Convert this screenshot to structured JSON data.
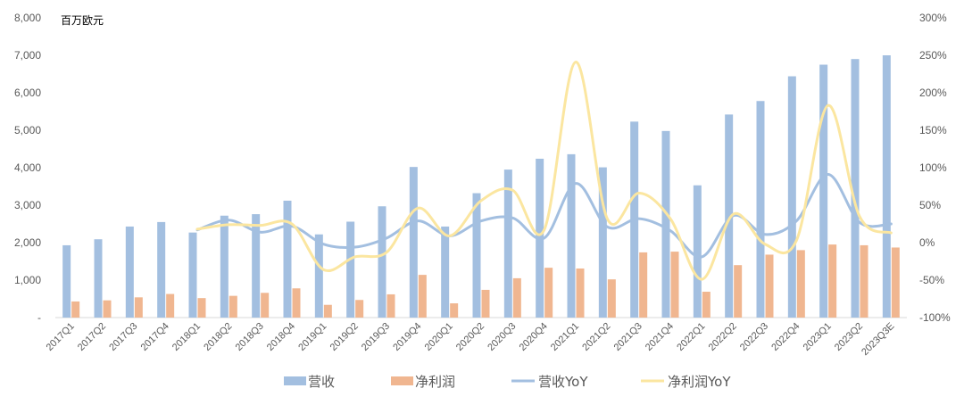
{
  "chart_data": {
    "type": "bar",
    "unit_label": "百万欧元",
    "categories": [
      "2017Q1",
      "2017Q2",
      "2017Q3",
      "2017Q4",
      "2018Q1",
      "2018Q2",
      "2018Q3",
      "2018Q4",
      "2019Q1",
      "2019Q2",
      "2019Q3",
      "2019Q4",
      "2020Q1",
      "2020Q2",
      "2020Q3",
      "2020Q4",
      "2021Q1",
      "2021Q2",
      "2021Q3",
      "2021Q4",
      "2022Q1",
      "2022Q2",
      "2022Q3",
      "2022Q4",
      "2023Q1",
      "2023Q2",
      "2023Q3E"
    ],
    "series": [
      {
        "name": "营收",
        "kind": "bar",
        "axis": "left",
        "color": "#a3bfe0",
        "values": [
          1930,
          2090,
          2430,
          2550,
          2270,
          2720,
          2760,
          3120,
          2220,
          2560,
          2970,
          4020,
          2430,
          3320,
          3950,
          4240,
          4360,
          4010,
          5230,
          4980,
          3530,
          5420,
          5780,
          6440,
          6750,
          6900,
          7000
        ]
      },
      {
        "name": "净利润",
        "kind": "bar",
        "axis": "left",
        "color": "#f0b690",
        "values": [
          430,
          460,
          540,
          630,
          520,
          580,
          660,
          780,
          340,
          470,
          620,
          1140,
          380,
          740,
          1050,
          1330,
          1310,
          1020,
          1740,
          1760,
          690,
          1400,
          1680,
          1800,
          1950,
          1930,
          1870
        ]
      },
      {
        "name": "营收YoY",
        "kind": "line",
        "axis": "right",
        "color": "#a3bfe0",
        "values": [
          null,
          null,
          null,
          null,
          17,
          30,
          14,
          22,
          -2,
          -6,
          6,
          29,
          9,
          29,
          33,
          6,
          79,
          21,
          32,
          16,
          -19,
          36,
          11,
          29,
          91,
          27,
          25
        ]
      },
      {
        "name": "净利润YoY",
        "kind": "line",
        "axis": "right",
        "color": "#fbe6a0",
        "values": [
          null,
          null,
          null,
          null,
          18,
          24,
          23,
          25,
          -36,
          -19,
          -13,
          46,
          9,
          56,
          70,
          17,
          241,
          32,
          66,
          32,
          -49,
          38,
          -2,
          3,
          183,
          35,
          13
        ]
      }
    ],
    "left_axis": {
      "min": 0,
      "max": 8000,
      "ticks": [
        "-",
        "1,000",
        "2,000",
        "3,000",
        "4,000",
        "5,000",
        "6,000",
        "7,000",
        "8,000"
      ]
    },
    "right_axis": {
      "min": -100,
      "max": 300,
      "ticks": [
        "-100%",
        "-50%",
        "0%",
        "50%",
        "100%",
        "150%",
        "200%",
        "250%",
        "300%"
      ]
    },
    "legend_position": "bottom",
    "grid": false
  }
}
